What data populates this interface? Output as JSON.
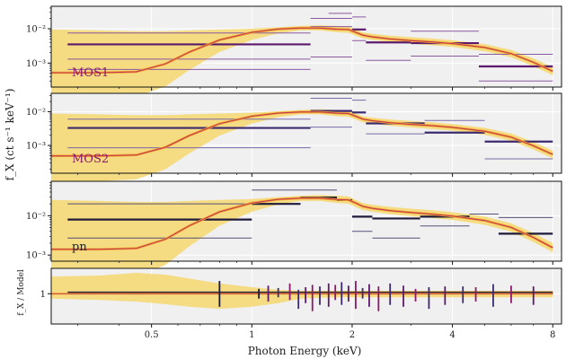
{
  "chart_data": {
    "type": "line",
    "xlabel": "Photon Energy (keV)",
    "ylabel": "f_X (ct s⁻¹ keV⁻¹)",
    "ratio_ylabel": "f_X / Model",
    "xscale": "log",
    "xlim": [
      0.25,
      8.5
    ],
    "x_ticks": [
      {
        "value": 0.5,
        "label": "0.5"
      },
      {
        "value": 1,
        "label": "1"
      },
      {
        "value": 2,
        "label": "2"
      },
      {
        "value": 4,
        "label": "4"
      },
      {
        "value": 8,
        "label": "8"
      }
    ],
    "colors": {
      "band": "#f4d97a",
      "model_outer": "#f2a52a",
      "model_inner": "#c0335a",
      "panel_bg": "#f0f0f0",
      "grid": "#ffffff",
      "label": "#8b1a6b",
      "pn_label": "#222222"
    },
    "model": {
      "x": [
        0.25,
        0.35,
        0.45,
        0.55,
        0.65,
        0.8,
        1.0,
        1.2,
        1.4,
        1.6,
        1.8,
        1.95,
        2.05,
        2.15,
        2.3,
        2.6,
        3.0,
        3.5,
        4.0,
        5.0,
        6.0,
        7.0,
        8.0
      ],
      "norm": [
        0.05,
        0.05,
        0.053,
        0.09,
        0.2,
        0.45,
        0.75,
        0.93,
        1.0,
        1.0,
        0.92,
        0.9,
        0.75,
        0.62,
        0.55,
        0.48,
        0.43,
        0.39,
        0.35,
        0.27,
        0.18,
        0.1,
        0.055
      ]
    },
    "band": {
      "upper": [
        0.9,
        0.85,
        0.8,
        0.8,
        0.85,
        0.9,
        0.95,
        1.05,
        1.15,
        1.2,
        1.15,
        1.1,
        0.9,
        0.75,
        0.68,
        0.6,
        0.54,
        0.49,
        0.44,
        0.34,
        0.23,
        0.13,
        0.072
      ],
      "lower": [
        0.009,
        0.009,
        0.01,
        0.02,
        0.06,
        0.2,
        0.45,
        0.7,
        0.85,
        0.85,
        0.75,
        0.72,
        0.6,
        0.5,
        0.45,
        0.39,
        0.35,
        0.31,
        0.28,
        0.21,
        0.14,
        0.077,
        0.042
      ]
    },
    "panels": [
      {
        "name": "MOS1",
        "label_color": "#8b1a6b",
        "ylim": [
          0.0002,
          0.045
        ],
        "ymajor": [
          {
            "value": 0.001,
            "label": "10⁻³"
          },
          {
            "value": 0.01,
            "label": "10⁻²"
          }
        ],
        "peak": 0.0105,
        "data": [
          {
            "x0": 0.28,
            "x1": 1.5,
            "y": 0.0035,
            "w": 2.2,
            "c": "#5b1a6b"
          },
          {
            "x0": 0.28,
            "x1": 1.5,
            "y": 0.0075,
            "w": 1.0,
            "c": "#8a5aa0"
          },
          {
            "x0": 0.28,
            "x1": 1.5,
            "y": 0.0013,
            "w": 1.0,
            "c": "#8a5aa0"
          },
          {
            "x0": 0.28,
            "x1": 1.5,
            "y": 0.00065,
            "w": 1.0,
            "c": "#8a5aa0"
          },
          {
            "x0": 1.5,
            "x1": 2.0,
            "y": 0.02,
            "w": 1.0,
            "c": "#8a5aa0"
          },
          {
            "x0": 1.5,
            "x1": 2.0,
            "y": 0.0115,
            "w": 1.0,
            "c": "#8a5aa0"
          },
          {
            "x0": 1.7,
            "x1": 2.0,
            "y": 0.028,
            "w": 1.0,
            "c": "#8a5aa0"
          },
          {
            "x0": 1.5,
            "x1": 2.0,
            "y": 0.0015,
            "w": 1.0,
            "c": "#8a5aa0"
          },
          {
            "x0": 2.0,
            "x1": 2.2,
            "y": 0.0095,
            "w": 2.2,
            "c": "#5b1a6b"
          },
          {
            "x0": 2.0,
            "x1": 2.2,
            "y": 0.022,
            "w": 1.0,
            "c": "#8a5aa0"
          },
          {
            "x0": 2.0,
            "x1": 2.2,
            "y": 0.0045,
            "w": 1.0,
            "c": "#8a5aa0"
          },
          {
            "x0": 2.2,
            "x1": 3.0,
            "y": 0.004,
            "w": 2.2,
            "c": "#5b1a6b"
          },
          {
            "x0": 2.2,
            "x1": 3.0,
            "y": 0.0012,
            "w": 1.0,
            "c": "#8a5aa0"
          },
          {
            "x0": 3.0,
            "x1": 4.8,
            "y": 0.0038,
            "w": 2.2,
            "c": "#5b1a6b"
          },
          {
            "x0": 3.0,
            "x1": 4.8,
            "y": 0.0085,
            "w": 1.0,
            "c": "#8a5aa0"
          },
          {
            "x0": 3.0,
            "x1": 4.8,
            "y": 0.0016,
            "w": 1.0,
            "c": "#8a5aa0"
          },
          {
            "x0": 4.8,
            "x1": 8.0,
            "y": 0.0008,
            "w": 2.2,
            "c": "#5b1a6b"
          },
          {
            "x0": 4.8,
            "x1": 8.0,
            "y": 0.0018,
            "w": 1.0,
            "c": "#8a5aa0"
          },
          {
            "x0": 4.8,
            "x1": 8.0,
            "y": 0.0003,
            "w": 1.0,
            "c": "#8a5aa0"
          }
        ]
      },
      {
        "name": "MOS2",
        "label_color": "#8b1a6b",
        "ylim": [
          0.00015,
          0.035
        ],
        "ymajor": [
          {
            "value": 0.001,
            "label": "10⁻³"
          },
          {
            "value": 0.01,
            "label": "10⁻²"
          }
        ],
        "peak": 0.0098,
        "data": [
          {
            "x0": 0.28,
            "x1": 1.5,
            "y": 0.0033,
            "w": 2.2,
            "c": "#3d2a70"
          },
          {
            "x0": 0.28,
            "x1": 1.5,
            "y": 0.006,
            "w": 1.0,
            "c": "#7a6aa8"
          },
          {
            "x0": 0.28,
            "x1": 1.5,
            "y": 0.00085,
            "w": 1.0,
            "c": "#7a6aa8"
          },
          {
            "x0": 1.5,
            "x1": 2.0,
            "y": 0.0105,
            "w": 2.2,
            "c": "#3d2a70"
          },
          {
            "x0": 1.5,
            "x1": 2.0,
            "y": 0.025,
            "w": 1.0,
            "c": "#7a6aa8"
          },
          {
            "x0": 1.5,
            "x1": 2.0,
            "y": 0.0035,
            "w": 1.0,
            "c": "#7a6aa8"
          },
          {
            "x0": 2.0,
            "x1": 2.2,
            "y": 0.022,
            "w": 1.0,
            "c": "#7a6aa8"
          },
          {
            "x0": 2.0,
            "x1": 2.2,
            "y": 0.0095,
            "w": 2.2,
            "c": "#3d2a70"
          },
          {
            "x0": 2.2,
            "x1": 3.3,
            "y": 0.0045,
            "w": 2.2,
            "c": "#3d2a70"
          },
          {
            "x0": 2.2,
            "x1": 3.3,
            "y": 0.0022,
            "w": 1.0,
            "c": "#7a6aa8"
          },
          {
            "x0": 3.3,
            "x1": 5.0,
            "y": 0.0024,
            "w": 2.2,
            "c": "#3d2a70"
          },
          {
            "x0": 3.3,
            "x1": 5.0,
            "y": 0.0055,
            "w": 1.0,
            "c": "#7a6aa8"
          },
          {
            "x0": 5.0,
            "x1": 8.0,
            "y": 0.0013,
            "w": 2.2,
            "c": "#3d2a70"
          },
          {
            "x0": 5.0,
            "x1": 8.0,
            "y": 0.0004,
            "w": 1.0,
            "c": "#7a6aa8"
          }
        ]
      },
      {
        "name": "pn",
        "label_color": "#222222",
        "ylim": [
          0.0007,
          0.075
        ],
        "ymajor": [
          {
            "value": 0.001,
            "label": "10⁻³"
          },
          {
            "value": 0.01,
            "label": "10⁻²"
          }
        ],
        "peak": 0.028,
        "data": [
          {
            "x0": 0.28,
            "x1": 1.0,
            "y": 0.008,
            "w": 2.2,
            "c": "#1e1a3a"
          },
          {
            "x0": 0.28,
            "x1": 1.0,
            "y": 0.02,
            "w": 1.0,
            "c": "#55507a"
          },
          {
            "x0": 0.28,
            "x1": 1.0,
            "y": 0.0027,
            "w": 1.0,
            "c": "#55507a"
          },
          {
            "x0": 1.0,
            "x1": 1.4,
            "y": 0.02,
            "w": 2.2,
            "c": "#1e1a3a"
          },
          {
            "x0": 1.0,
            "x1": 1.4,
            "y": 0.045,
            "w": 1.0,
            "c": "#55507a"
          },
          {
            "x0": 1.4,
            "x1": 1.8,
            "y": 0.029,
            "w": 2.2,
            "c": "#1e1a3a"
          },
          {
            "x0": 1.4,
            "x1": 1.8,
            "y": 0.045,
            "w": 1.0,
            "c": "#55507a"
          },
          {
            "x0": 1.8,
            "x1": 2.0,
            "y": 0.025,
            "w": 2.2,
            "c": "#1e1a3a"
          },
          {
            "x0": 2.0,
            "x1": 2.3,
            "y": 0.0095,
            "w": 2.2,
            "c": "#1e1a3a"
          },
          {
            "x0": 2.0,
            "x1": 2.3,
            "y": 0.004,
            "w": 1.0,
            "c": "#55507a"
          },
          {
            "x0": 2.3,
            "x1": 3.2,
            "y": 0.0085,
            "w": 2.2,
            "c": "#1e1a3a"
          },
          {
            "x0": 2.3,
            "x1": 3.2,
            "y": 0.0027,
            "w": 1.0,
            "c": "#55507a"
          },
          {
            "x0": 3.2,
            "x1": 4.5,
            "y": 0.0095,
            "w": 2.2,
            "c": "#1e1a3a"
          },
          {
            "x0": 3.2,
            "x1": 4.5,
            "y": 0.0055,
            "w": 1.0,
            "c": "#55507a"
          },
          {
            "x0": 4.5,
            "x1": 5.5,
            "y": 0.011,
            "w": 1.0,
            "c": "#55507a"
          },
          {
            "x0": 5.5,
            "x1": 8.0,
            "y": 0.0035,
            "w": 2.2,
            "c": "#1e1a3a"
          },
          {
            "x0": 5.5,
            "x1": 8.0,
            "y": 0.009,
            "w": 1.0,
            "c": "#55507a"
          }
        ]
      },
      {
        "name": "ratio",
        "ylim": [
          0.25,
          3.2
        ],
        "ymajor": [
          {
            "value": 1,
            "label": "1"
          }
        ],
        "ratio_band": {
          "upper": [
            2.2,
            2.3,
            2.6,
            2.4,
            2.0,
            1.6,
            1.35,
            1.2,
            1.15,
            1.15,
            1.15,
            1.15,
            1.15,
            1.15,
            1.15,
            1.15,
            1.15,
            1.15,
            1.15,
            1.15,
            1.15,
            1.15,
            1.15
          ],
          "lower": [
            0.8,
            0.75,
            0.7,
            0.62,
            0.55,
            0.5,
            0.55,
            0.65,
            0.8,
            0.83,
            0.85,
            0.85,
            0.85,
            0.85,
            0.85,
            0.85,
            0.85,
            0.85,
            0.85,
            0.85,
            0.85,
            0.85,
            0.85
          ]
        },
        "hsegs": [
          {
            "x0": 0.28,
            "x1": 8.0,
            "y": 1.05,
            "w": 2.4,
            "c": "#1e1a3a"
          },
          {
            "x0": 0.28,
            "x1": 8.0,
            "y": 1.0,
            "w": 1.0,
            "c": "#5b1a6b"
          },
          {
            "x0": 2.0,
            "x1": 4.0,
            "y": 1.02,
            "w": 1.2,
            "c": "#8b1a6b"
          }
        ],
        "errors": [
          {
            "x": 0.8,
            "y": 1.0,
            "lo": 0.55,
            "hi": 1.8,
            "c": "#1e1a3a"
          },
          {
            "x": 1.05,
            "y": 1.0,
            "lo": 0.8,
            "hi": 1.25,
            "c": "#1e1a3a"
          },
          {
            "x": 1.12,
            "y": 1.05,
            "lo": 0.7,
            "hi": 1.45,
            "c": "#5b1a6b"
          },
          {
            "x": 1.2,
            "y": 1.0,
            "lo": 0.85,
            "hi": 1.3,
            "c": "#3d2a70"
          },
          {
            "x": 1.3,
            "y": 1.1,
            "lo": 0.75,
            "hi": 1.6,
            "c": "#8b1a6b"
          },
          {
            "x": 1.38,
            "y": 0.95,
            "lo": 0.5,
            "hi": 1.2,
            "c": "#3d2a70"
          },
          {
            "x": 1.45,
            "y": 1.05,
            "lo": 0.65,
            "hi": 1.35,
            "c": "#5b1a6b"
          },
          {
            "x": 1.52,
            "y": 1.0,
            "lo": 0.45,
            "hi": 1.5,
            "c": "#8b1a6b"
          },
          {
            "x": 1.6,
            "y": 1.0,
            "lo": 0.6,
            "hi": 1.4,
            "c": "#3d2a70"
          },
          {
            "x": 1.7,
            "y": 1.05,
            "lo": 0.55,
            "hi": 1.6,
            "c": "#5b1a6b"
          },
          {
            "x": 1.78,
            "y": 1.0,
            "lo": 0.75,
            "hi": 1.5,
            "c": "#8b1a6b"
          },
          {
            "x": 1.86,
            "y": 1.1,
            "lo": 0.6,
            "hi": 1.7,
            "c": "#3d2a70"
          },
          {
            "x": 1.95,
            "y": 1.0,
            "lo": 0.7,
            "hi": 1.45,
            "c": "#5b1a6b"
          },
          {
            "x": 2.05,
            "y": 1.05,
            "lo": 0.5,
            "hi": 1.8,
            "c": "#8b1a6b"
          },
          {
            "x": 2.15,
            "y": 1.0,
            "lo": 0.8,
            "hi": 1.3,
            "c": "#3d2a70"
          },
          {
            "x": 2.25,
            "y": 1.1,
            "lo": 0.55,
            "hi": 1.55,
            "c": "#5b1a6b"
          },
          {
            "x": 2.4,
            "y": 1.0,
            "lo": 0.45,
            "hi": 1.4,
            "c": "#8b1a6b"
          },
          {
            "x": 2.6,
            "y": 1.0,
            "lo": 0.6,
            "hi": 1.6,
            "c": "#3d2a70"
          },
          {
            "x": 2.85,
            "y": 1.05,
            "lo": 0.55,
            "hi": 1.45,
            "c": "#5b1a6b"
          },
          {
            "x": 3.1,
            "y": 0.95,
            "lo": 0.7,
            "hi": 1.25,
            "c": "#8b1a6b"
          },
          {
            "x": 3.4,
            "y": 1.0,
            "lo": 0.5,
            "hi": 1.35,
            "c": "#3d2a70"
          },
          {
            "x": 3.8,
            "y": 1.05,
            "lo": 0.6,
            "hi": 1.4,
            "c": "#5b1a6b"
          },
          {
            "x": 4.3,
            "y": 1.0,
            "lo": 0.65,
            "hi": 1.4,
            "c": "#3d2a70"
          },
          {
            "x": 4.7,
            "y": 1.0,
            "lo": 0.7,
            "hi": 1.35,
            "c": "#8b1a6b"
          },
          {
            "x": 5.3,
            "y": 1.05,
            "lo": 0.55,
            "hi": 1.55,
            "c": "#3d2a70"
          },
          {
            "x": 6.0,
            "y": 1.0,
            "lo": 0.65,
            "hi": 1.45,
            "c": "#8b1a6b"
          },
          {
            "x": 7.0,
            "y": 1.0,
            "lo": 0.6,
            "hi": 1.4,
            "c": "#5b1a6b"
          }
        ]
      }
    ]
  }
}
